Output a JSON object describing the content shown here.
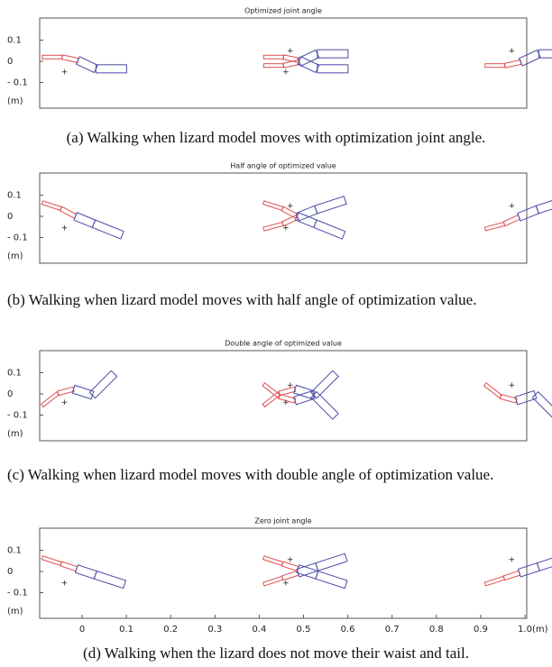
{
  "panels": [
    {
      "title": "Optimized joint angle",
      "yticks": [
        "0.1",
        "0",
        "- 0.1"
      ],
      "unit": "(m)",
      "caption": "(a) Walking when lizard model moves with optimization joint angle."
    },
    {
      "title": "Half angle of optimized value",
      "yticks": [
        "0.1",
        "0",
        "- 0.1"
      ],
      "unit": "(m)",
      "caption": "(b) Walking when lizard model moves with half angle of optimization value."
    },
    {
      "title": "Double angle of optimized value",
      "yticks": [
        "0.1",
        "0",
        "- 0.1"
      ],
      "unit": "(m)",
      "caption": "(c) Walking when lizard model moves with double angle of optimization value."
    },
    {
      "title": "Zero joint angle",
      "yticks": [
        "0.1",
        "0",
        "- 0.1"
      ],
      "unit": "(m)",
      "caption": "(d) Walking when the lizard does not move their waist and tail."
    }
  ],
  "xaxis": {
    "ticks": [
      "0",
      "0.1",
      "0.2",
      "0.3",
      "0.4",
      "0.5",
      "0.6",
      "0.7",
      "0.8",
      "0.9",
      "1.0"
    ],
    "unit": "(m)"
  }
}
